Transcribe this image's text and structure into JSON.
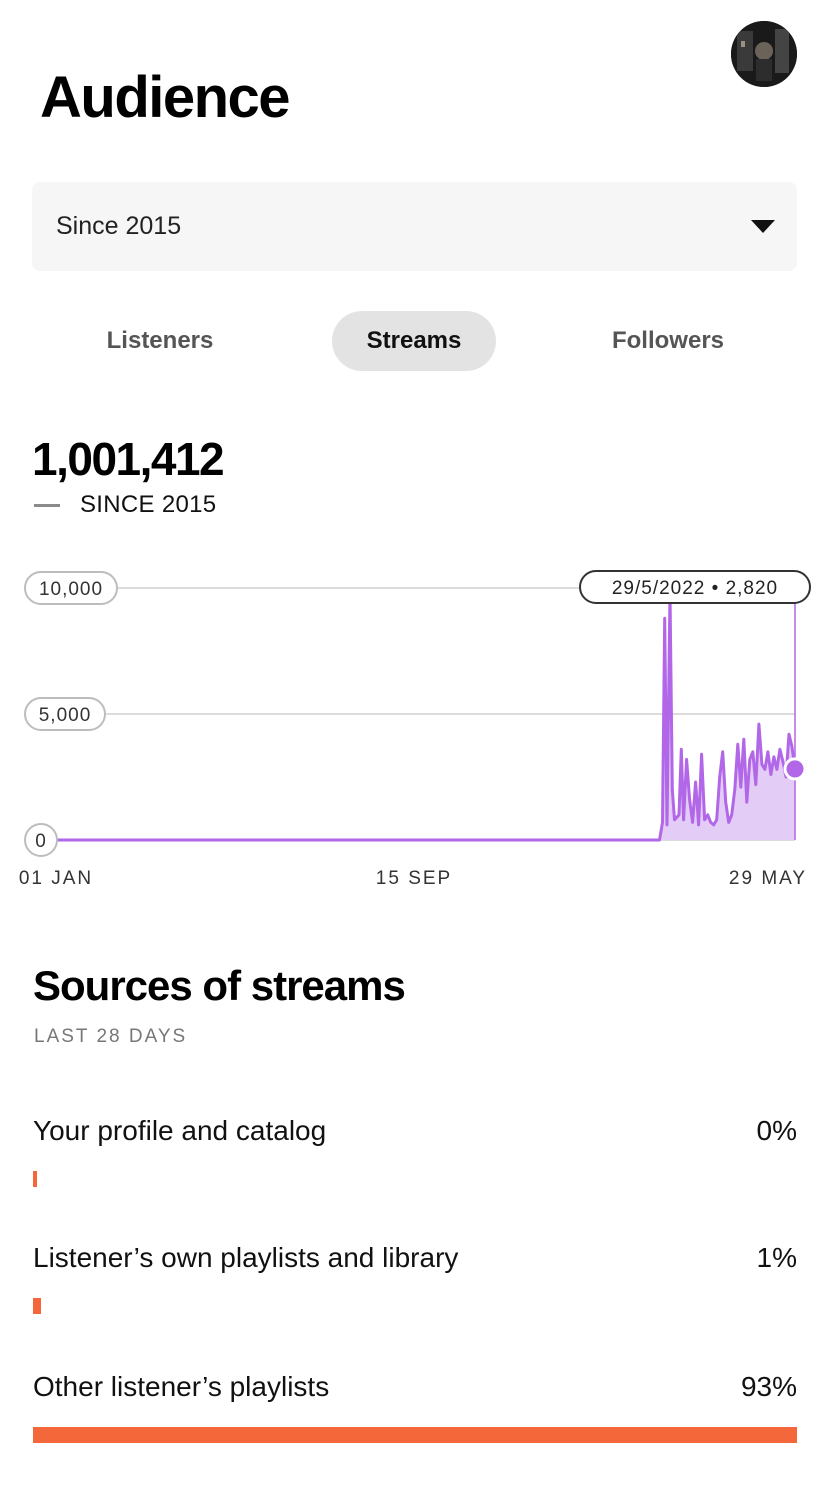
{
  "header": {
    "title": "Audience",
    "avatar_icon": "profile-avatar"
  },
  "period_select": {
    "value": "Since 2015",
    "icon": "chevron-down-icon"
  },
  "tabs": [
    {
      "label": "Listeners",
      "active": false
    },
    {
      "label": "Streams",
      "active": true
    },
    {
      "label": "Followers",
      "active": false
    }
  ],
  "summary": {
    "total": "1,001,412",
    "legend": "SINCE 2015"
  },
  "colors": {
    "accent_purple": "#b267e8",
    "accent_fill": "#e3cdf7",
    "bar_orange": "#f4673a"
  },
  "chart_data": {
    "type": "area",
    "y_ticks": [
      "10,000",
      "5,000",
      "0"
    ],
    "ylim": [
      0,
      10000
    ],
    "x_tick_labels": [
      "01 JAN",
      "15 SEP",
      "29 MAY"
    ],
    "tooltip": "29/5/2022 • 2,820",
    "series": [
      {
        "x_fraction": [
          0,
          0.82,
          0.824,
          0.827,
          0.83,
          0.834,
          0.837,
          0.84,
          0.843,
          0.846,
          0.849,
          0.852,
          0.856,
          0.86,
          0.864,
          0.868,
          0.872,
          0.876,
          0.88,
          0.884,
          0.888,
          0.892,
          0.896,
          0.9,
          0.904,
          0.908,
          0.912,
          0.916,
          0.92,
          0.924,
          0.928,
          0.932,
          0.936,
          0.94,
          0.944,
          0.948,
          0.952,
          0.956,
          0.96,
          0.964,
          0.968,
          0.972,
          0.976,
          0.98,
          0.984,
          0.988,
          0.992,
          0.996,
          1.0
        ],
        "values": [
          0,
          0,
          700,
          8800,
          600,
          9800,
          2000,
          800,
          900,
          1000,
          3600,
          800,
          3200,
          1600,
          700,
          2300,
          600,
          3400,
          800,
          1000,
          700,
          600,
          800,
          2500,
          3500,
          1500,
          700,
          1000,
          2000,
          3800,
          2100,
          4000,
          1500,
          3200,
          3500,
          2200,
          4600,
          3000,
          2800,
          3500,
          2600,
          3300,
          2800,
          3600,
          3100,
          2500,
          4200,
          3700,
          2820
        ]
      }
    ]
  },
  "sources": {
    "title": "Sources of streams",
    "subtitle": "LAST 28 DAYS",
    "items": [
      {
        "label": "Your profile and catalog",
        "percent": "0%",
        "fraction": 0.005
      },
      {
        "label": "Listener’s own playlists and library",
        "percent": "1%",
        "fraction": 0.01
      },
      {
        "label": "Other listener’s playlists",
        "percent": "93%",
        "fraction": 1.0
      }
    ]
  }
}
